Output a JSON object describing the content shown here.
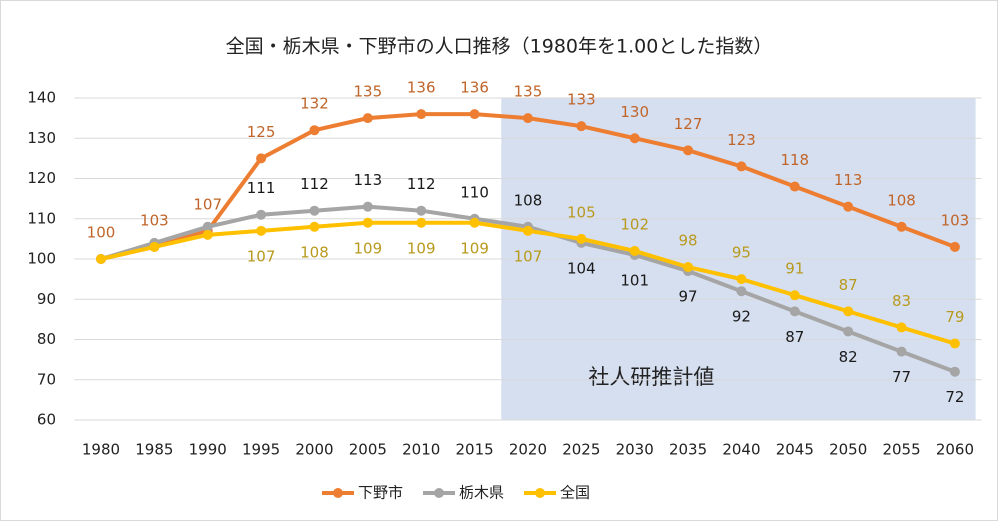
{
  "chart_data": {
    "type": "line",
    "title": "全国・栃木県・下野市の人口推移（1980年を1.00とした指数）",
    "categories": [
      "1980",
      "1985",
      "1990",
      "1995",
      "2000",
      "2005",
      "2010",
      "2015",
      "2020",
      "2025",
      "2030",
      "2035",
      "2040",
      "2045",
      "2050",
      "2055",
      "2060"
    ],
    "series": [
      {
        "name": "下野市",
        "color": "#ed7d31",
        "label_color": "#c0652a",
        "values": [
          100,
          103,
          107,
          125,
          132,
          135,
          136,
          136,
          135,
          133,
          130,
          127,
          123,
          118,
          113,
          108,
          103
        ]
      },
      {
        "name": "栃木県",
        "color": "#a5a5a5",
        "label_color": "#1a1a1a",
        "values": [
          100,
          104,
          108,
          111,
          112,
          113,
          112,
          110,
          108,
          104,
          101,
          97,
          92,
          87,
          82,
          77,
          72
        ],
        "value_labels": [
          null,
          null,
          null,
          "111",
          "112",
          "113",
          "112",
          "110",
          "108",
          "104",
          "101",
          "97",
          "92",
          "87",
          "82",
          "77",
          "72"
        ]
      },
      {
        "name": "全国",
        "color": "#ffc000",
        "label_color": "#b89a1e",
        "values": [
          100,
          103,
          106,
          107,
          108,
          109,
          109,
          109,
          107,
          105,
          102,
          98,
          95,
          91,
          87,
          83,
          79
        ],
        "value_labels": [
          null,
          null,
          null,
          "107",
          "108",
          "109",
          "109",
          "109",
          "107",
          "105",
          "102",
          "98",
          "95",
          "91",
          "87",
          "83",
          "79"
        ]
      }
    ],
    "annotation": {
      "text": "社人研推計値",
      "from": "2020",
      "color": "#d6dff0"
    },
    "ylim": [
      60,
      140
    ],
    "yticks": [
      60,
      70,
      80,
      90,
      100,
      110,
      120,
      130,
      140
    ],
    "grid": true,
    "legend": "bottom"
  }
}
